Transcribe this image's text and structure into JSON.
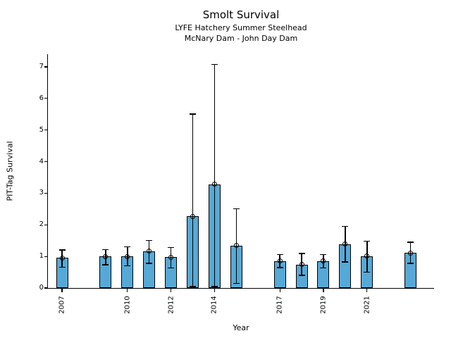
{
  "chart_data": {
    "type": "bar",
    "title": "Smolt Survival",
    "subtitle1": "LYFE Hatchery Summer Steelhead",
    "subtitle2": "McNary Dam - John Day Dam",
    "xlabel": "Year",
    "ylabel": "PIT-Tag Survival",
    "x": [
      2007,
      2009,
      2010,
      2011,
      2012,
      2013,
      2014,
      2015,
      2017,
      2018,
      2019,
      2020,
      2021,
      2023
    ],
    "values": [
      0.95,
      1.0,
      1.0,
      1.16,
      0.98,
      2.27,
      3.28,
      1.34,
      0.85,
      0.74,
      0.85,
      1.39,
      1.01,
      1.11
    ],
    "error_low": [
      0.66,
      0.74,
      0.7,
      0.78,
      0.64,
      0.05,
      0.05,
      0.14,
      0.65,
      0.4,
      0.63,
      0.83,
      0.5,
      0.78
    ],
    "error_high": [
      1.2,
      1.21,
      1.3,
      1.5,
      1.28,
      5.5,
      7.08,
      2.51,
      1.06,
      1.09,
      1.06,
      1.95,
      1.48,
      1.45
    ],
    "xticks": [
      2007,
      2010,
      2012,
      2014,
      2017,
      2019,
      2021
    ],
    "yticks": [
      0,
      1,
      2,
      3,
      4,
      5,
      6,
      7
    ],
    "xlim": [
      2006.35,
      2024.08
    ],
    "ylim": [
      0,
      7.4
    ],
    "grid": false,
    "legend": "none",
    "marker": "open-circle",
    "colors": {
      "bar_fill": "#56a9d6",
      "bar_edge": "#000000",
      "error": "#000000",
      "text": "#000000"
    }
  }
}
